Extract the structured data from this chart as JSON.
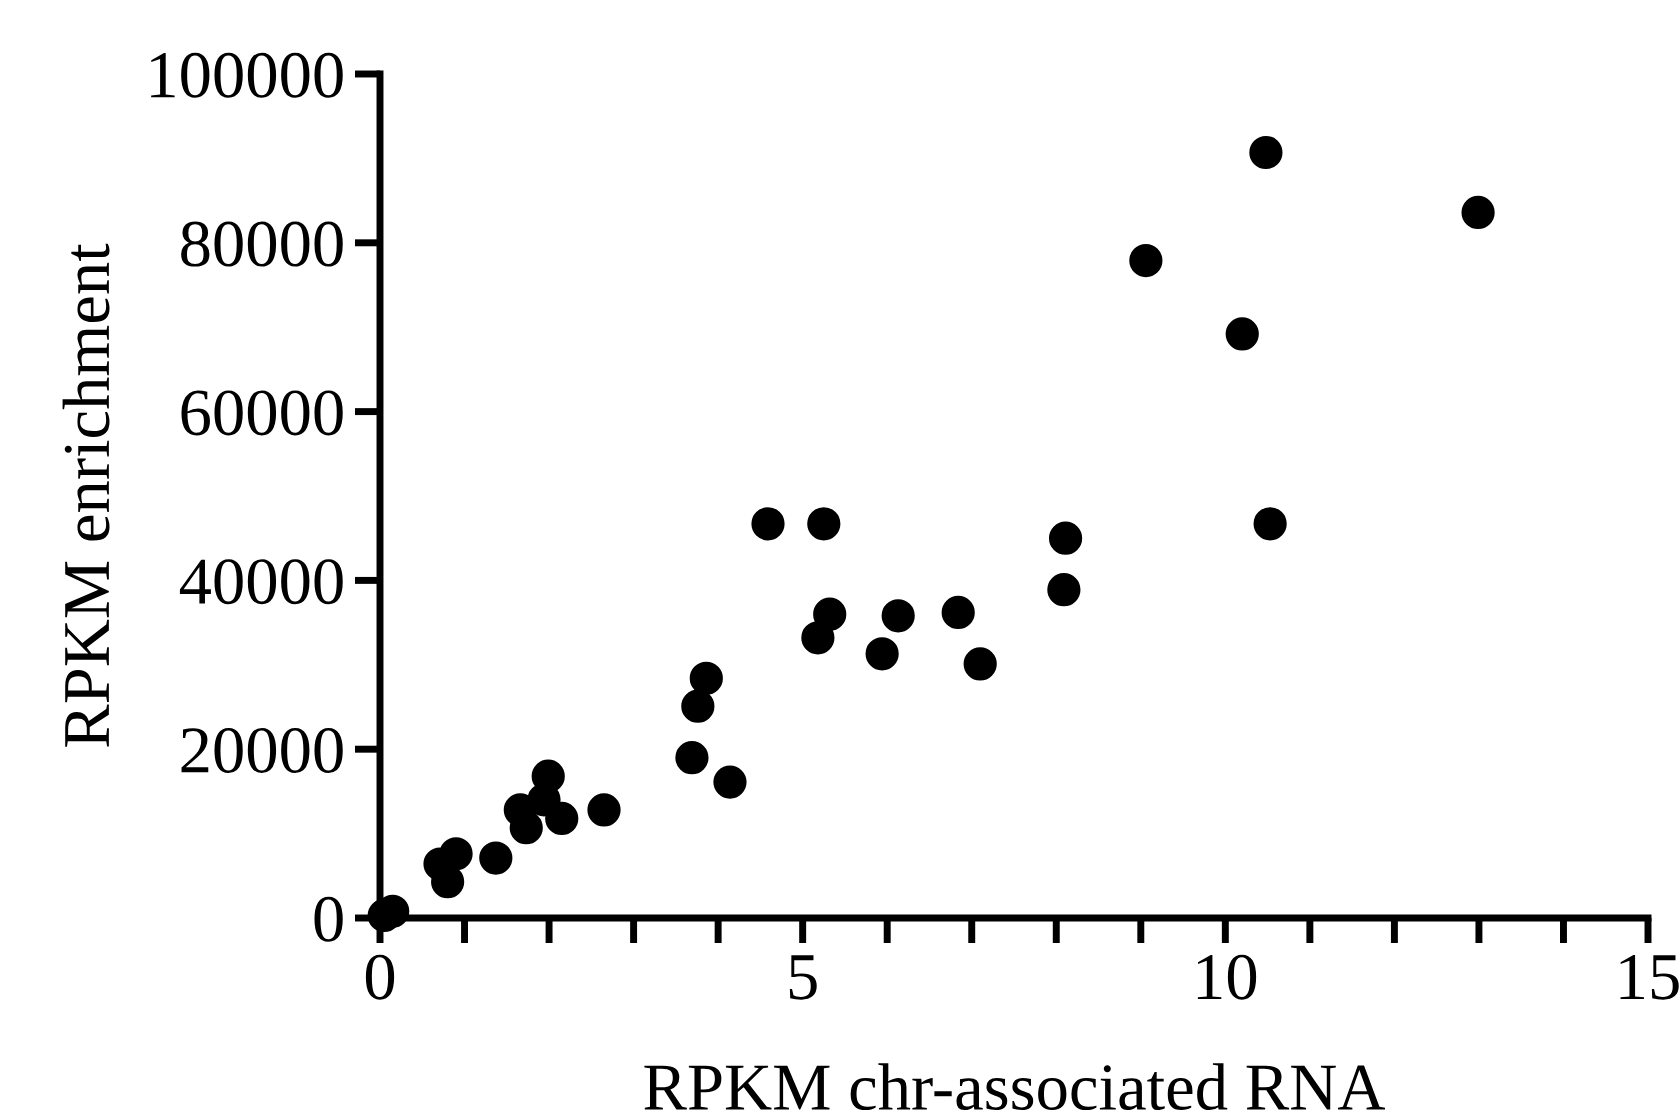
{
  "chart_data": {
    "type": "scatter",
    "xlabel": "RPKM chr-associated RNA",
    "ylabel": "RPKM enrichment",
    "x": [
      0.05,
      0.15,
      0.71,
      0.9,
      0.8,
      1.37,
      1.66,
      1.73,
      1.99,
      1.94,
      2.15,
      2.65,
      3.69,
      3.76,
      3.86,
      4.14,
      4.59,
      5.25,
      5.32,
      5.18,
      5.94,
      6.13,
      6.84,
      7.1,
      10.48,
      12.99,
      9.06,
      10.2,
      10.53,
      8.11,
      8.09
    ],
    "series": [
      {
        "color": "#000000",
        "values": [
          300,
          800,
          6400,
          7600,
          4300,
          7100,
          12800,
          10700,
          16800,
          14000,
          11800,
          12800,
          19000,
          25100,
          28400,
          16100,
          46700,
          46700,
          36000,
          33200,
          31300,
          35800,
          36200,
          30100,
          90700,
          83600,
          77900,
          69200,
          46700,
          45000,
          38900
        ]
      }
    ],
    "marker": "circle",
    "xlim": [
      0,
      15
    ],
    "xticks": [
      0,
      {
        "value": 1,
        "label": null
      },
      {
        "value": 2,
        "label": null
      },
      {
        "value": 3,
        "label": null
      },
      {
        "value": 4,
        "label": null
      },
      5,
      {
        "value": 6,
        "label": null
      },
      {
        "value": 7,
        "label": null
      },
      {
        "value": 8,
        "label": null
      },
      {
        "value": 9,
        "label": null
      },
      10,
      {
        "value": 11,
        "label": null
      },
      {
        "value": 12,
        "label": null
      },
      {
        "value": 13,
        "label": null
      },
      {
        "value": 14,
        "label": null
      },
      15
    ],
    "ylim": [
      0,
      100000
    ],
    "yticks": [
      0,
      20000,
      40000,
      60000,
      80000,
      100000
    ],
    "grid": false
  }
}
